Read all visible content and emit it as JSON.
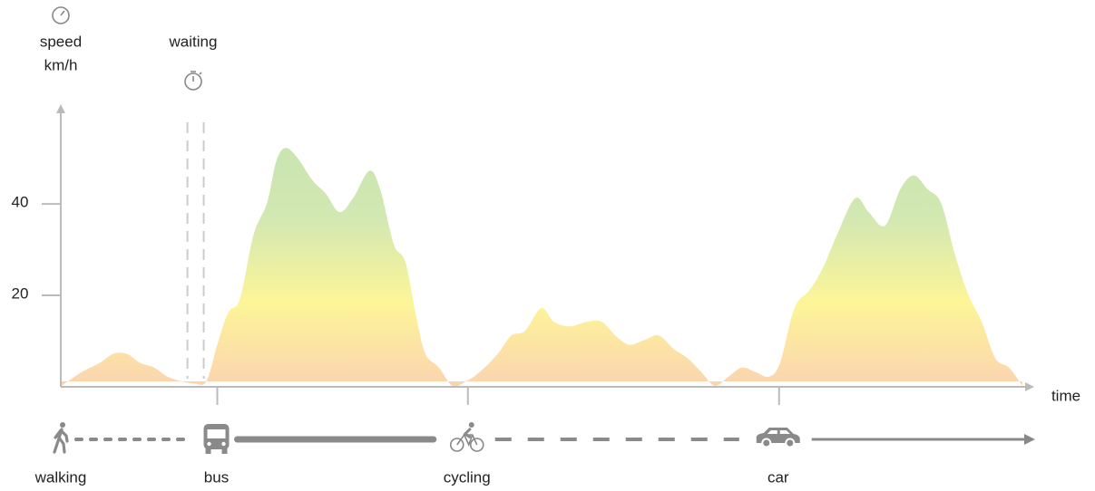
{
  "chart_data": {
    "type": "area",
    "y_label_lines": [
      "speed",
      "km/h"
    ],
    "x_label": "time",
    "xlim": [
      0,
      107
    ],
    "ylim": [
      0,
      62
    ],
    "yticks": [
      20,
      40
    ],
    "x": [
      0,
      2.2,
      4.2,
      5.7,
      7.2,
      8.7,
      10.2,
      11.7,
      13.2,
      14.7,
      16,
      17.2,
      18.4,
      19.7,
      21.2,
      22.7,
      23.7,
      24.7,
      26,
      27.7,
      29.2,
      30.7,
      32.2,
      34,
      35.2,
      36.7,
      38,
      39.2,
      40.2,
      41.7,
      43.2,
      44.7,
      46.2,
      48.2,
      49.7,
      51.2,
      53,
      54.4,
      56.2,
      58,
      59.7,
      61.2,
      62.7,
      64.4,
      66,
      67.7,
      69.2,
      70.7,
      72.2,
      73.7,
      75.2,
      76.7,
      78.2,
      79.4,
      81,
      82.7,
      84.2,
      85.7,
      87.7,
      89.2,
      91,
      92.7,
      94.2,
      95.7,
      97.2,
      98.7,
      100.2,
      101.7,
      103.2,
      104.7,
      106.2
    ],
    "values": [
      2,
      5,
      7,
      9,
      9,
      7,
      6,
      4,
      3,
      2.5,
      3,
      11,
      18,
      21,
      35,
      42,
      51,
      54,
      52,
      47,
      44,
      40,
      43,
      49,
      45,
      33,
      29,
      17,
      9,
      6,
      2,
      3,
      5,
      9,
      13,
      14,
      19,
      16,
      15,
      16,
      16,
      13,
      11,
      12,
      13,
      10,
      8,
      5,
      2,
      4,
      6,
      5,
      4,
      7,
      19,
      23,
      28,
      35,
      43,
      40,
      37,
      45,
      48,
      45,
      42,
      31,
      22,
      16,
      8,
      6,
      2
    ],
    "gradient": [
      "#fbd3b0",
      "#fdf598",
      "#d3e8b2",
      "#c8e4b0"
    ],
    "waiting": {
      "label": "waiting",
      "x": [
        13.9,
        15.7
      ]
    },
    "modes": [
      {
        "name": "walking",
        "start": 0,
        "line": "dotted"
      },
      {
        "name": "bus",
        "start": 17.2,
        "line": "thick"
      },
      {
        "name": "cycling",
        "start": 44.9,
        "line": "dashed"
      },
      {
        "name": "car",
        "start": 79.3,
        "line": "arrow"
      }
    ]
  }
}
